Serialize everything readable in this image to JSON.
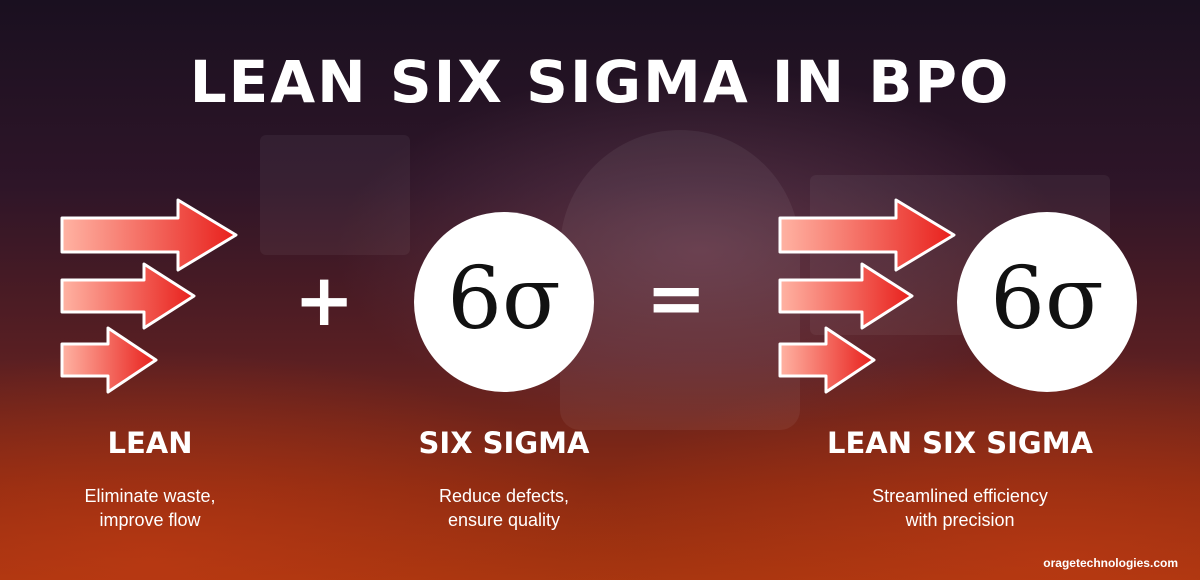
{
  "title": "LEAN SIX SIGMA IN BPO",
  "operators": {
    "plus": "+",
    "equals": "="
  },
  "sigma_symbol": "6σ",
  "columns": [
    {
      "label": "LEAN",
      "description": [
        "Eliminate waste,",
        "improve flow"
      ]
    },
    {
      "label": "SIX SIGMA",
      "description": [
        "Reduce defects,",
        "ensure quality"
      ]
    },
    {
      "label": "LEAN SIX SIGMA",
      "description": [
        "Streamlined efficiency",
        "with precision"
      ]
    }
  ],
  "footer": "oragetechnologies.com",
  "colors": {
    "arrow_light": "#ffb3a3",
    "arrow_dark": "#e8201c",
    "circle": "#ffffff"
  },
  "icons": [
    "arrows-icon",
    "six-sigma-icon"
  ]
}
